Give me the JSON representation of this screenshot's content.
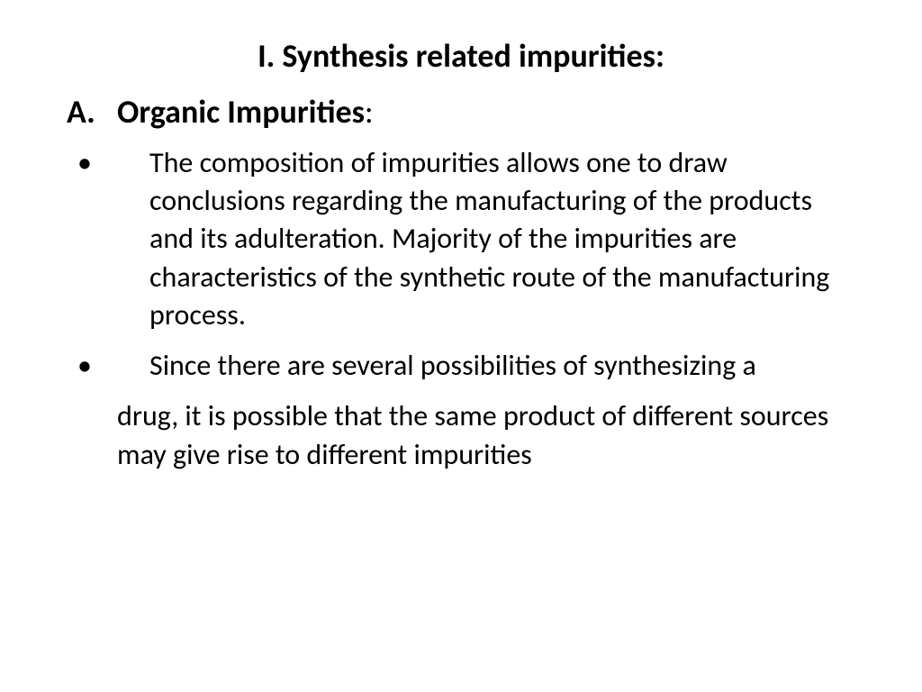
{
  "title": "I. Synthesis related impurities:",
  "section": {
    "letter": "A.",
    "label": "Organic Impurities",
    "trailing": ":"
  },
  "bullets": [
    "The composition of impurities allows one to draw conclusions regarding the manufacturing of the products and its adulteration. Majority of the impurities are characteristics of the synthetic route of the manufacturing process.",
    "Since there are several possibilities of synthesizing a"
  ],
  "continuation": "drug, it is possible that the same product of different sources may give rise to different impurities",
  "colors": {
    "text": "#000000",
    "background": "#ffffff"
  },
  "typography": {
    "title_fontsize": 36,
    "heading_fontsize": 36,
    "body_fontsize": 32,
    "title_weight": 700,
    "heading_weight": 700,
    "body_weight": 400
  }
}
